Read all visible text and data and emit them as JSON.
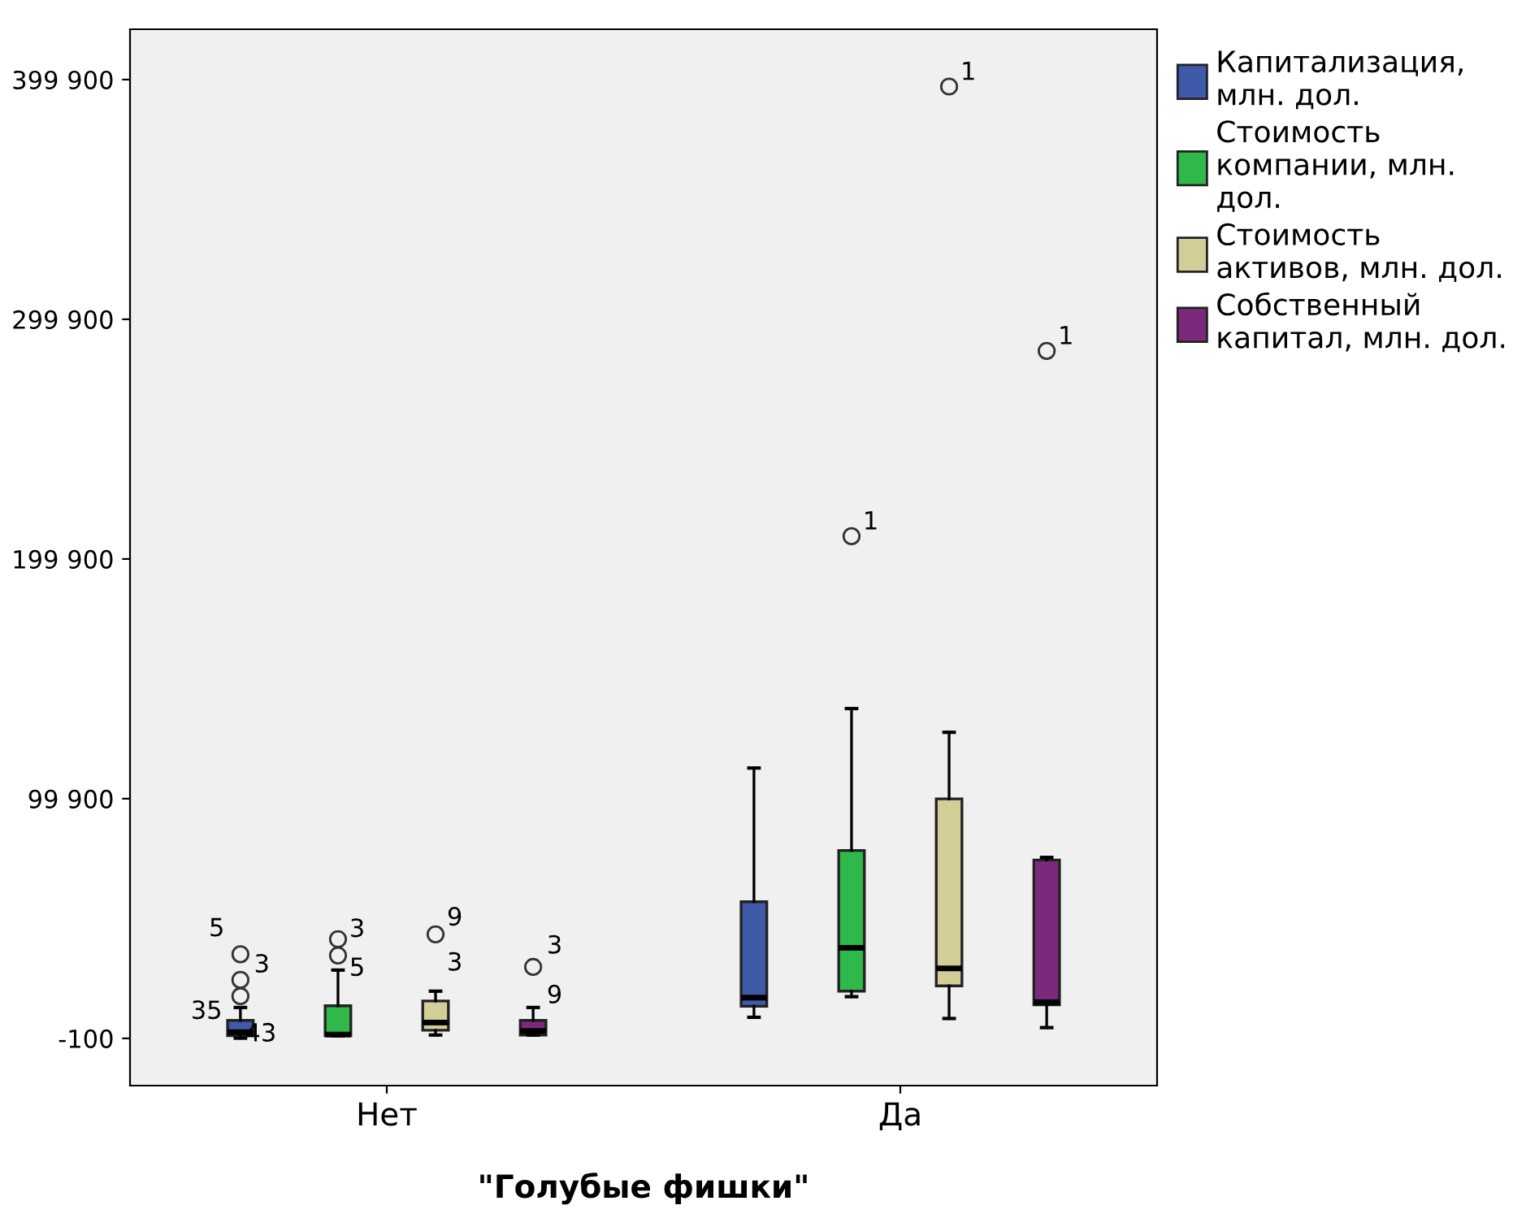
{
  "chart_data": {
    "type": "box",
    "xlabel": "\"Голубые фишки\"",
    "categories": [
      "Нет",
      "Да"
    ],
    "ylim": [
      -19800,
      420900
    ],
    "yticks": [
      -100,
      {
        "value": 99900,
        "label": "99 900"
      },
      {
        "value": 199900,
        "label": "199 900"
      },
      {
        "value": 299900,
        "label": "299 900"
      },
      {
        "value": 399900,
        "label": "399 900"
      }
    ],
    "grid": false,
    "legend": "top right",
    "series": [
      {
        "name": "Капитализация,\nмлн. дол.",
        "color": "#3e5aa9",
        "boxes": [
          {
            "low": 0,
            "q1": 1000,
            "median": 2500,
            "q3": 7400,
            "high": 12800,
            "outliers": [
              17500,
              24300,
              35000
            ]
          },
          {
            "low": 8700,
            "q1": 13300,
            "median": 16900,
            "q3": 56900,
            "high": 112700
          }
        ]
      },
      {
        "name": "Стоимость\nкомпании, млн.\nдол.",
        "color": "#2eb94a",
        "boxes": [
          {
            "low": 1000,
            "q1": 1000,
            "median": 1500,
            "q3": 13500,
            "high": 28400,
            "outliers": [
              34500,
              41300
            ]
          },
          {
            "low": 17300,
            "q1": 19600,
            "median": 37700,
            "q3": 78300,
            "high": 137500,
            "outliers": [
              209400
            ]
          }
        ]
      },
      {
        "name": "Стоимость\nактивов, млн. дол.",
        "color": "#d3ce97",
        "boxes": [
          {
            "low": 1300,
            "q1": 3300,
            "median": 6500,
            "q3": 15500,
            "high": 19600,
            "outliers": [
              43300
            ]
          },
          {
            "low": 8200,
            "q1": 21800,
            "median": 29100,
            "q3": 99800,
            "high": 127600,
            "outliers": [
              397000
            ]
          }
        ]
      },
      {
        "name": "Собственный\nкапитал, млн. дол.",
        "color": "#7b2a7b",
        "boxes": [
          {
            "low": 1300,
            "q1": 1300,
            "median": 3000,
            "q3": 7400,
            "high": 12800,
            "outliers": [
              29700
            ]
          },
          {
            "low": 4400,
            "q1": 13900,
            "median": 15000,
            "q3": 74300,
            "high": 75400,
            "outliers": [
              286700
            ]
          }
        ]
      }
    ],
    "annotations": [
      "5",
      "3",
      "35",
      "43",
      "3",
      "5",
      "9",
      "3",
      "3",
      "9",
      "1",
      "1",
      "1"
    ]
  }
}
